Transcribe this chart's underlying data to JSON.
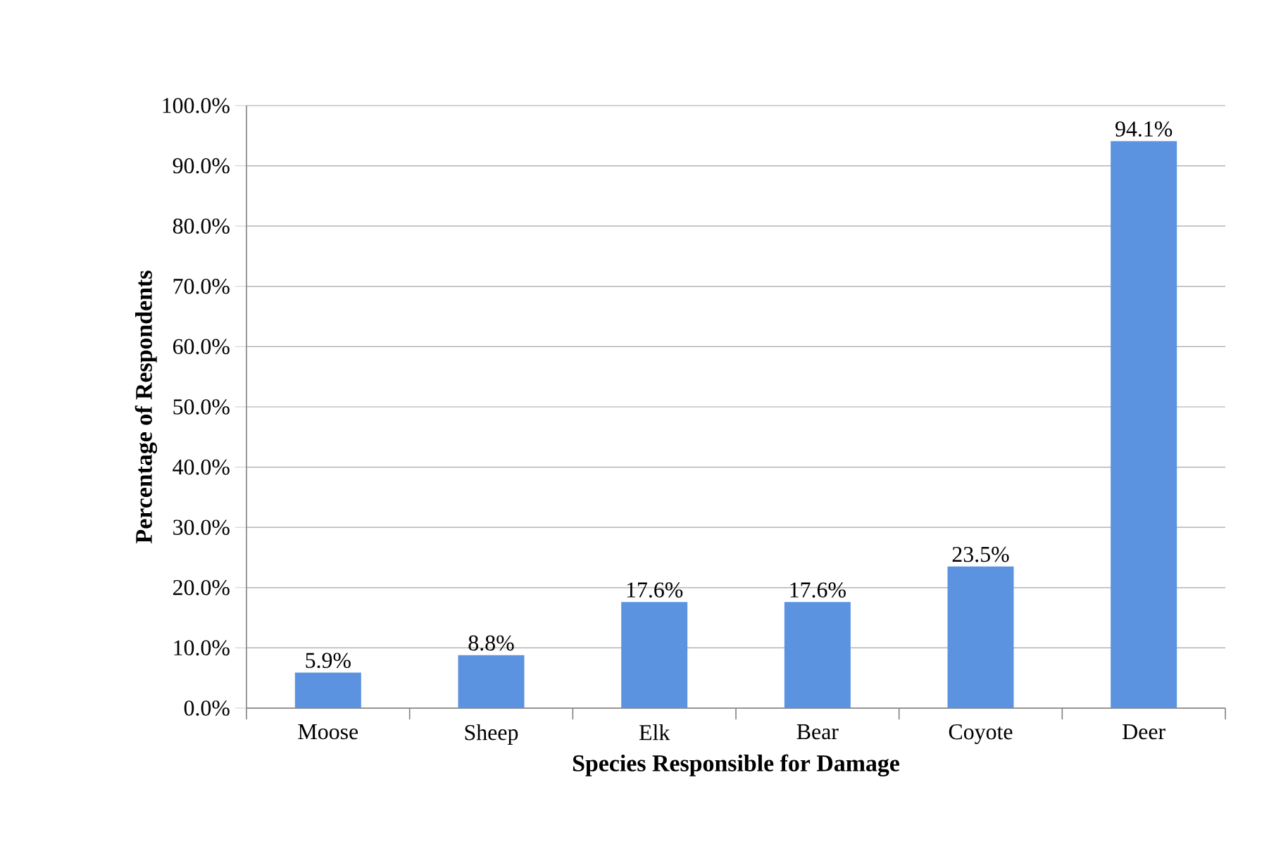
{
  "chart_data": {
    "type": "bar",
    "xlabel": "Species Responsible for Damage",
    "ylabel": "Percentage of Respondents",
    "categories": [
      "Moose",
      "Sheep",
      "Elk",
      "Bear",
      "Coyote",
      "Deer"
    ],
    "values": [
      5.9,
      8.8,
      17.6,
      17.6,
      23.5,
      94.1
    ],
    "value_labels": [
      "5.9%",
      "8.8%",
      "17.6%",
      "17.6%",
      "23.5%",
      "94.1%"
    ],
    "color": "#5b93e0",
    "ylim": [
      0,
      100
    ],
    "yticks": [
      {
        "value": 0,
        "label": "0.0%"
      },
      {
        "value": 10,
        "label": "10.0%"
      },
      {
        "value": 20,
        "label": "20.0%"
      },
      {
        "value": 30,
        "label": "30.0%"
      },
      {
        "value": 40,
        "label": "40.0%"
      },
      {
        "value": 50,
        "label": "50.0%"
      },
      {
        "value": 60,
        "label": "60.0%"
      },
      {
        "value": 70,
        "label": "70.0%"
      },
      {
        "value": 80,
        "label": "80.0%"
      },
      {
        "value": 90,
        "label": "90.0%"
      },
      {
        "value": 100,
        "label": "100.0%"
      }
    ],
    "grid": "y"
  }
}
